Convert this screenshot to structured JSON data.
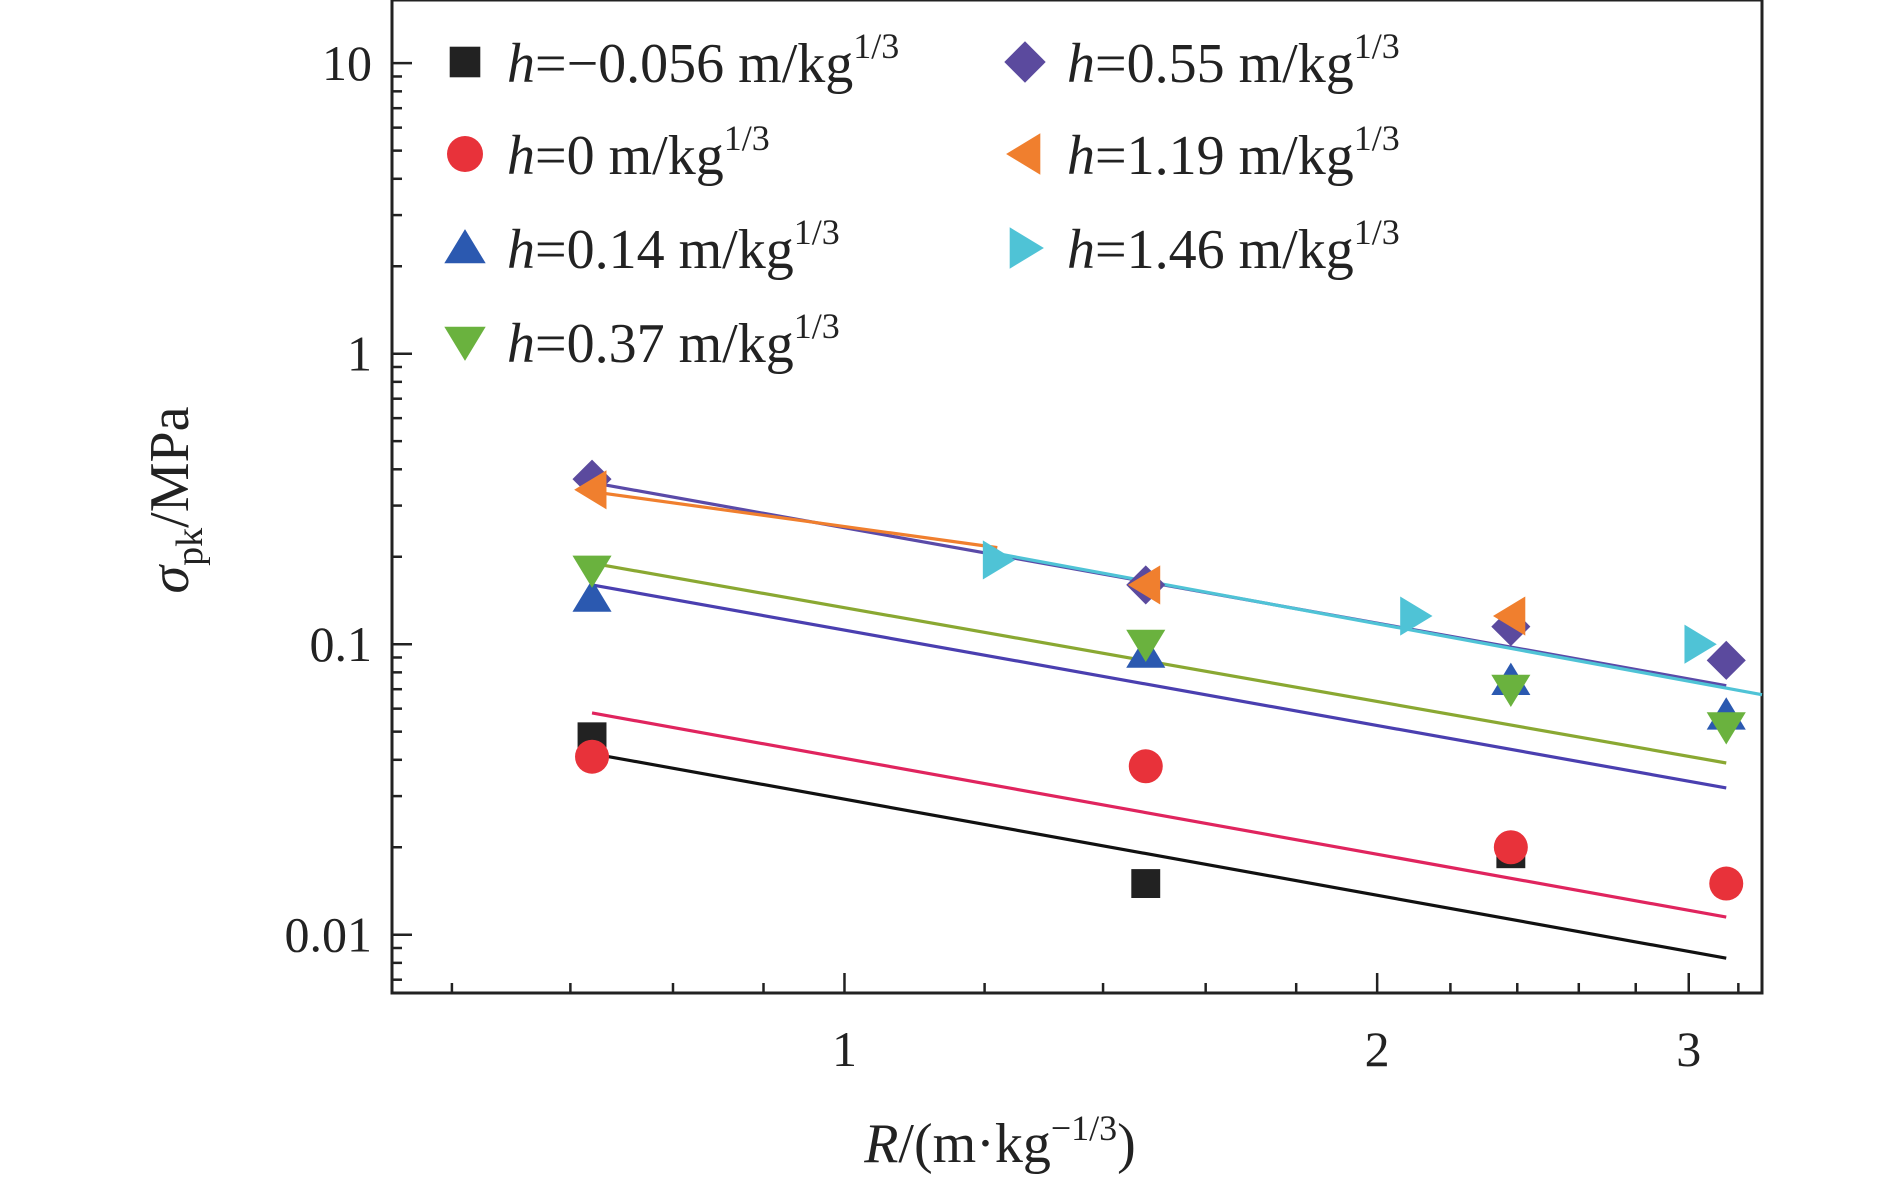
{
  "chart_data": {
    "type": "scatter",
    "x_scale": "log",
    "y_scale": "log",
    "xlim": [
      0.555,
      3.3
    ],
    "ylim": [
      0.0063,
      16.5
    ],
    "grid": false,
    "legend_position": "top-left",
    "x_ticks": [
      {
        "value": 1,
        "label": "1"
      },
      {
        "value": 2,
        "label": "2"
      },
      {
        "value": 3,
        "label": "3"
      }
    ],
    "y_ticks": [
      {
        "value": 0.01,
        "label": "0.01"
      },
      {
        "value": 0.1,
        "label": "0.1"
      },
      {
        "value": 1,
        "label": "1"
      },
      {
        "value": 10,
        "label": "10"
      }
    ],
    "xlabel": {
      "var": "R",
      "rest": "/(m·kg",
      "sup": "−1/3",
      "close": ")"
    },
    "ylabel": {
      "var": "σ",
      "sub": "pk",
      "rest": "/MPa"
    },
    "series": [
      {
        "name": "h=−0.056 m/kg1/3",
        "label_var": "h",
        "label_rest": "=−0.056 m/kg",
        "label_sup": "1/3",
        "marker": "square",
        "color": "#222222",
        "line_color": "#111111",
        "x": [
          0.72,
          1.48,
          2.38
        ],
        "y": [
          0.048,
          0.015,
          0.019
        ],
        "fit": {
          "x": [
            0.72,
            3.15
          ],
          "y": [
            0.042,
            0.0083
          ]
        }
      },
      {
        "name": "h=0 m/kg1/3",
        "label_var": "h",
        "label_rest": "=0 m/kg",
        "label_sup": "1/3",
        "marker": "circle",
        "color": "#e8323a",
        "line_color": "#e0245e",
        "x": [
          0.72,
          1.48,
          2.38,
          3.15
        ],
        "y": [
          0.041,
          0.038,
          0.02,
          0.015
        ],
        "fit": {
          "x": [
            0.72,
            3.15
          ],
          "y": [
            0.058,
            0.0115
          ]
        }
      },
      {
        "name": "h=0.14 m/kg1/3",
        "label_var": "h",
        "label_rest": "=0.14 m/kg",
        "label_sup": "1/3",
        "marker": "triangle-up",
        "color": "#2b59b0",
        "line_color": "#4a3fb0",
        "x": [
          0.72,
          1.48,
          2.38,
          3.15
        ],
        "y": [
          0.145,
          0.093,
          0.075,
          0.057
        ],
        "fit": {
          "x": [
            0.72,
            3.15
          ],
          "y": [
            0.16,
            0.032
          ]
        }
      },
      {
        "name": "h=0.37 m/kg1/3",
        "label_var": "h",
        "label_rest": "=0.37 m/kg",
        "label_sup": "1/3",
        "marker": "triangle-down",
        "color": "#6ab23e",
        "line_color": "#8aa832",
        "x": [
          0.72,
          1.48,
          2.38,
          3.15
        ],
        "y": [
          0.18,
          0.1,
          0.07,
          0.052
        ],
        "fit": {
          "x": [
            0.72,
            3.15
          ],
          "y": [
            0.19,
            0.039
          ]
        }
      },
      {
        "name": "h=0.55 m/kg1/3",
        "label_var": "h",
        "label_rest": "=0.55 m/kg",
        "label_sup": "1/3",
        "marker": "diamond",
        "color": "#5b4a9e",
        "line_color": "#5a4aa8",
        "x": [
          0.72,
          1.48,
          2.38,
          3.15
        ],
        "y": [
          0.37,
          0.16,
          0.115,
          0.088
        ],
        "fit": {
          "x": [
            0.72,
            3.15
          ],
          "y": [
            0.36,
            0.072
          ]
        }
      },
      {
        "name": "h=1.19 m/kg1/3",
        "label_var": "h",
        "label_rest": "=1.19 m/kg",
        "label_sup": "1/3",
        "marker": "triangle-left",
        "color": "#f07f2e",
        "line_color": "#f07f2e",
        "x": [
          0.72,
          1.48,
          2.38
        ],
        "y": [
          0.34,
          0.16,
          0.125
        ],
        "fit": {
          "x": [
            0.72,
            1.22
          ],
          "y": [
            0.335,
            0.215
          ]
        }
      },
      {
        "name": "h=1.46 m/kg1/3",
        "label_var": "h",
        "label_rest": "=1.46 m/kg",
        "label_sup": "1/3",
        "marker": "triangle-right",
        "color": "#4fc3d6",
        "line_color": "#4fc3d6",
        "x": [
          1.22,
          2.1,
          3.04
        ],
        "y": [
          0.195,
          0.125,
          0.1
        ],
        "fit": {
          "x": [
            1.22,
            3.3
          ],
          "y": [
            0.205,
            0.067
          ]
        }
      }
    ]
  }
}
